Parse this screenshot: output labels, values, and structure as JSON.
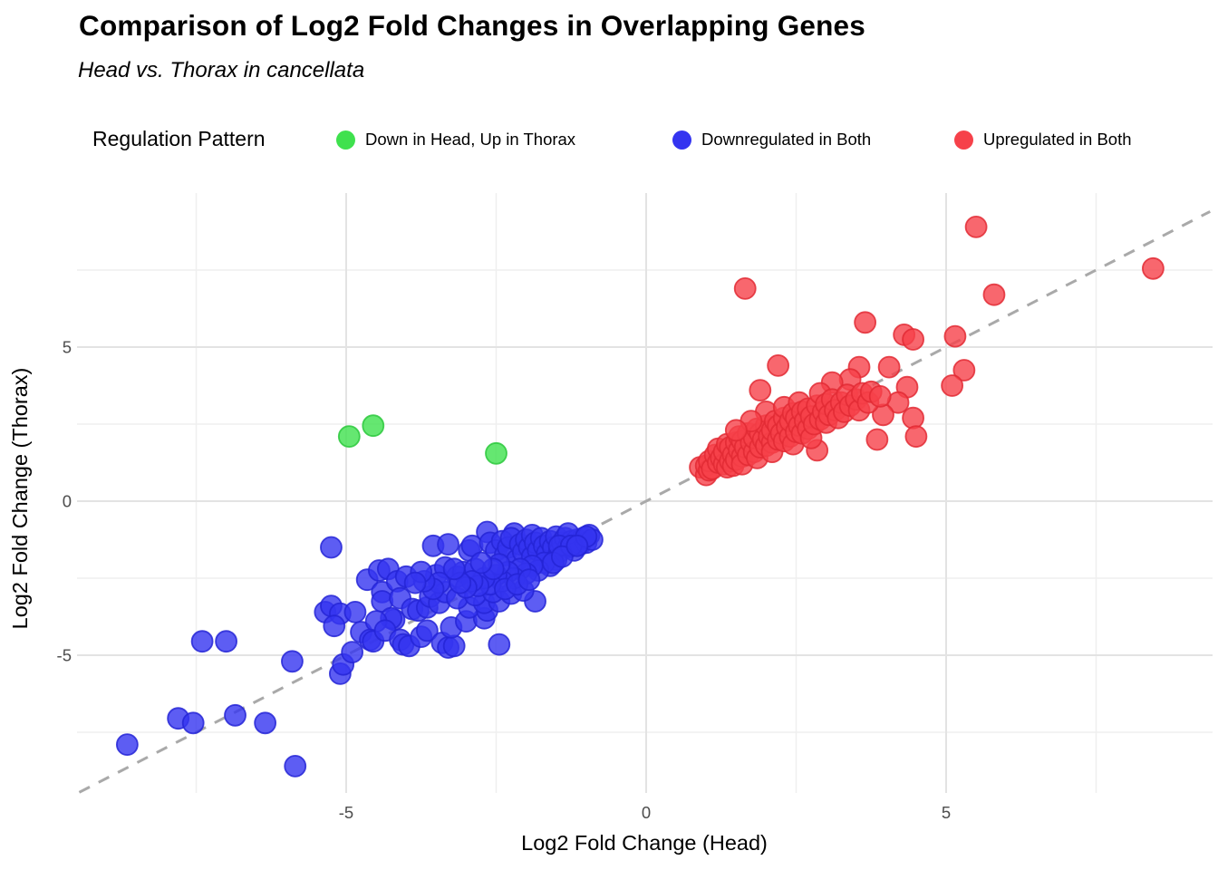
{
  "legend": {
    "title": "Regulation Pattern",
    "items": [
      {
        "label": "Down in Head, Up in Thorax",
        "color": "#3fe14e"
      },
      {
        "label": "Downregulated in Both",
        "color": "#3434f0"
      },
      {
        "label": "Upregulated in Both",
        "color": "#f6414a"
      }
    ]
  },
  "chart_data": {
    "type": "scatter",
    "title": "Comparison of Log2 Fold Changes in Overlapping Genes",
    "subtitle": "Head vs. Thorax in cancellata",
    "xlabel": "Log2 Fold Change (Head)",
    "ylabel": "Log2 Fold Change (Thorax)",
    "xlim": [
      -9.5,
      9.4
    ],
    "ylim": [
      -9.6,
      10.0
    ],
    "xticks": [
      -5,
      0,
      5
    ],
    "yticks": [
      -5,
      0,
      5
    ],
    "xticks_minor": [
      -7.5,
      -2.5,
      2.5,
      7.5
    ],
    "yticks_minor": [
      -7.5,
      -2.5,
      2.5,
      7.5
    ],
    "grid": true,
    "legend_position": "top",
    "reference_line": {
      "type": "identity",
      "equation": "y = x",
      "style": "dashed",
      "color": "#a9a9a9"
    },
    "series": [
      {
        "name": "Down in Head, Up in Thorax",
        "key": "down-head-up-thorax",
        "color": "#3fe14e",
        "stroke": "#2cc83c",
        "points": [
          [
            -4.95,
            2.1
          ],
          [
            -4.55,
            2.45
          ],
          [
            -2.5,
            1.55
          ]
        ]
      },
      {
        "name": "Downregulated in Both",
        "key": "downregulated-in-both",
        "color": "#3434f0",
        "stroke": "#2424d6",
        "points": [
          [
            -8.65,
            -7.9
          ],
          [
            -7.8,
            -7.05
          ],
          [
            -7.55,
            -7.2
          ],
          [
            -7.4,
            -4.55
          ],
          [
            -7.0,
            -4.55
          ],
          [
            -6.85,
            -6.95
          ],
          [
            -6.35,
            -7.2
          ],
          [
            -5.9,
            -5.2
          ],
          [
            -5.85,
            -8.6
          ],
          [
            -5.1,
            -5.6
          ],
          [
            -5.05,
            -5.3
          ],
          [
            -4.9,
            -4.9
          ],
          [
            -5.25,
            -1.5
          ],
          [
            -5.35,
            -3.6
          ],
          [
            -5.25,
            -3.4
          ],
          [
            -5.1,
            -3.65
          ],
          [
            -5.2,
            -4.05
          ],
          [
            -4.85,
            -3.6
          ],
          [
            -4.75,
            -4.25
          ],
          [
            -4.65,
            -2.55
          ],
          [
            -4.45,
            -2.25
          ],
          [
            -4.3,
            -2.2
          ],
          [
            -4.4,
            -2.95
          ],
          [
            -4.4,
            -3.25
          ],
          [
            -4.15,
            -2.6
          ],
          [
            -4.1,
            -3.15
          ],
          [
            -4.0,
            -2.45
          ],
          [
            -3.9,
            -3.5
          ],
          [
            -3.8,
            -3.55
          ],
          [
            -3.65,
            -3.45
          ],
          [
            -4.2,
            -3.85
          ],
          [
            -4.25,
            -3.8
          ],
          [
            -4.5,
            -3.9
          ],
          [
            -4.6,
            -4.5
          ],
          [
            -4.55,
            -4.55
          ],
          [
            -4.35,
            -4.2
          ],
          [
            -4.1,
            -4.5
          ],
          [
            -4.05,
            -4.65
          ],
          [
            -3.95,
            -4.7
          ],
          [
            -3.75,
            -4.4
          ],
          [
            -3.65,
            -4.2
          ],
          [
            -3.4,
            -4.6
          ],
          [
            -3.3,
            -4.75
          ],
          [
            -3.2,
            -4.7
          ],
          [
            -3.25,
            -4.1
          ],
          [
            -3.0,
            -3.9
          ],
          [
            -2.7,
            -3.8
          ],
          [
            -2.95,
            -3.45
          ],
          [
            -2.65,
            -3.55
          ],
          [
            -2.7,
            -3.3
          ],
          [
            -2.45,
            -3.25
          ],
          [
            -1.85,
            -3.25
          ],
          [
            -2.45,
            -4.65
          ],
          [
            -3.6,
            -3.1
          ],
          [
            -3.45,
            -3.3
          ],
          [
            -3.35,
            -2.95
          ],
          [
            -3.15,
            -3.15
          ],
          [
            -2.85,
            -3.05
          ],
          [
            -2.55,
            -2.95
          ],
          [
            -2.25,
            -3.0
          ],
          [
            -2.05,
            -2.9
          ],
          [
            -3.55,
            -1.45
          ],
          [
            -3.3,
            -1.4
          ],
          [
            -2.95,
            -1.6
          ],
          [
            -2.9,
            -1.45
          ],
          [
            -3.5,
            -2.4
          ],
          [
            -3.35,
            -2.15
          ],
          [
            -3.15,
            -2.45
          ],
          [
            -3.05,
            -2.3
          ],
          [
            -2.85,
            -2.2
          ],
          [
            -2.65,
            -1.0
          ],
          [
            -2.2,
            -1.05
          ],
          [
            -2.6,
            -1.35
          ],
          [
            -2.5,
            -1.6
          ],
          [
            -2.4,
            -1.3
          ],
          [
            -2.35,
            -1.75
          ],
          [
            -2.3,
            -1.5
          ],
          [
            -2.25,
            -1.2
          ],
          [
            -2.15,
            -1.9
          ],
          [
            -2.1,
            -1.4
          ],
          [
            -2.05,
            -1.65
          ],
          [
            -2.0,
            -1.25
          ],
          [
            -1.95,
            -1.5
          ],
          [
            -1.9,
            -1.1
          ],
          [
            -1.9,
            -1.8
          ],
          [
            -1.85,
            -1.35
          ],
          [
            -1.8,
            -1.6
          ],
          [
            -1.75,
            -1.2
          ],
          [
            -1.7,
            -1.45
          ],
          [
            -1.65,
            -1.7
          ],
          [
            -1.6,
            -1.3
          ],
          [
            -1.55,
            -1.5
          ],
          [
            -1.5,
            -1.15
          ],
          [
            -1.45,
            -1.65
          ],
          [
            -1.4,
            -1.35
          ],
          [
            -1.35,
            -1.2
          ],
          [
            -1.3,
            -1.5
          ],
          [
            -1.25,
            -1.3
          ],
          [
            -1.2,
            -1.6
          ],
          [
            -1.15,
            -1.25
          ],
          [
            -1.1,
            -1.4
          ],
          [
            -1.05,
            -1.2
          ],
          [
            -1.0,
            -1.35
          ],
          [
            -0.95,
            -1.1
          ],
          [
            -0.9,
            -1.25
          ],
          [
            -1.3,
            -1.05
          ],
          [
            -1.5,
            -1.9
          ],
          [
            -1.6,
            -2.1
          ],
          [
            -1.7,
            -2.0
          ],
          [
            -1.8,
            -2.25
          ],
          [
            -1.9,
            -2.1
          ],
          [
            -2.0,
            -2.35
          ],
          [
            -2.1,
            -2.2
          ],
          [
            -2.2,
            -2.5
          ],
          [
            -2.3,
            -2.3
          ],
          [
            -2.4,
            -2.6
          ],
          [
            -2.5,
            -2.4
          ],
          [
            -2.6,
            -2.7
          ],
          [
            -2.7,
            -2.5
          ],
          [
            -2.8,
            -2.75
          ],
          [
            -2.9,
            -2.6
          ],
          [
            -3.0,
            -2.8
          ],
          [
            -2.45,
            -2.05
          ],
          [
            -2.55,
            -2.2
          ],
          [
            -2.75,
            -2.0
          ],
          [
            -1.45,
            -1.45
          ],
          [
            -1.25,
            -1.45
          ],
          [
            -2.35,
            -2.85
          ],
          [
            -2.15,
            -2.7
          ],
          [
            -1.95,
            -2.55
          ],
          [
            -3.1,
            -2.65
          ],
          [
            -3.2,
            -2.2
          ],
          [
            -3.45,
            -2.65
          ],
          [
            -3.55,
            -2.85
          ],
          [
            -3.7,
            -2.6
          ],
          [
            -3.75,
            -2.3
          ],
          [
            -3.85,
            -2.65
          ],
          [
            -1.55,
            -2.0
          ],
          [
            -1.4,
            -1.8
          ],
          [
            -1.0,
            -1.15
          ],
          [
            -1.15,
            -1.45
          ]
        ]
      },
      {
        "name": "Upregulated in Both",
        "key": "upregulated-in-both",
        "color": "#f6414a",
        "stroke": "#e22a34",
        "points": [
          [
            5.5,
            8.9
          ],
          [
            8.45,
            7.55
          ],
          [
            1.65,
            6.9
          ],
          [
            5.8,
            6.7
          ],
          [
            3.65,
            5.8
          ],
          [
            4.3,
            5.4
          ],
          [
            4.45,
            5.25
          ],
          [
            5.15,
            5.35
          ],
          [
            2.2,
            4.4
          ],
          [
            3.55,
            4.35
          ],
          [
            4.05,
            4.35
          ],
          [
            5.3,
            4.25
          ],
          [
            5.1,
            3.75
          ],
          [
            1.9,
            3.6
          ],
          [
            4.35,
            3.7
          ],
          [
            4.2,
            3.2
          ],
          [
            3.95,
            2.8
          ],
          [
            4.45,
            2.7
          ],
          [
            3.85,
            2.0
          ],
          [
            4.5,
            2.1
          ],
          [
            2.85,
            1.65
          ],
          [
            3.4,
            3.95
          ],
          [
            3.1,
            3.85
          ],
          [
            0.9,
            1.1
          ],
          [
            1.0,
            0.85
          ],
          [
            1.0,
            1.15
          ],
          [
            1.05,
            1.0
          ],
          [
            1.05,
            1.3
          ],
          [
            1.1,
            1.05
          ],
          [
            1.15,
            1.5
          ],
          [
            1.2,
            1.25
          ],
          [
            1.2,
            1.7
          ],
          [
            1.25,
            1.4
          ],
          [
            1.3,
            1.2
          ],
          [
            1.3,
            1.6
          ],
          [
            1.35,
            1.85
          ],
          [
            1.35,
            1.1
          ],
          [
            1.4,
            1.3
          ],
          [
            1.4,
            1.75
          ],
          [
            1.45,
            1.5
          ],
          [
            1.45,
            1.15
          ],
          [
            1.5,
            1.35
          ],
          [
            1.5,
            1.9
          ],
          [
            1.55,
            1.65
          ],
          [
            1.55,
            2.1
          ],
          [
            1.6,
            1.45
          ],
          [
            1.6,
            1.2
          ],
          [
            1.6,
            1.95
          ],
          [
            1.65,
            1.75
          ],
          [
            1.7,
            1.5
          ],
          [
            1.7,
            2.2
          ],
          [
            1.75,
            1.9
          ],
          [
            1.8,
            1.6
          ],
          [
            1.8,
            2.05
          ],
          [
            1.85,
            2.35
          ],
          [
            1.85,
            1.4
          ],
          [
            1.9,
            1.75
          ],
          [
            1.9,
            2.2
          ],
          [
            1.95,
            2.0
          ],
          [
            2.0,
            1.8
          ],
          [
            2.0,
            2.45
          ],
          [
            2.0,
            2.9
          ],
          [
            2.05,
            2.1
          ],
          [
            2.1,
            1.9
          ],
          [
            2.1,
            2.3
          ],
          [
            2.1,
            1.6
          ],
          [
            2.15,
            2.6
          ],
          [
            2.2,
            2.0
          ],
          [
            2.2,
            2.45
          ],
          [
            2.25,
            2.2
          ],
          [
            2.3,
            1.95
          ],
          [
            2.3,
            2.7
          ],
          [
            2.3,
            3.05
          ],
          [
            2.35,
            2.4
          ],
          [
            2.4,
            2.1
          ],
          [
            2.4,
            2.6
          ],
          [
            2.45,
            2.85
          ],
          [
            2.45,
            1.85
          ],
          [
            2.5,
            2.25
          ],
          [
            2.5,
            2.7
          ],
          [
            2.55,
            2.45
          ],
          [
            2.55,
            3.2
          ],
          [
            2.6,
            2.2
          ],
          [
            2.6,
            2.9
          ],
          [
            2.65,
            2.6
          ],
          [
            2.7,
            2.35
          ],
          [
            2.7,
            3.0
          ],
          [
            2.75,
            2.75
          ],
          [
            2.75,
            2.05
          ],
          [
            2.8,
            2.5
          ],
          [
            2.85,
            3.1
          ],
          [
            2.9,
            2.65
          ],
          [
            2.9,
            3.5
          ],
          [
            2.95,
            2.9
          ],
          [
            3.0,
            2.55
          ],
          [
            3.0,
            3.15
          ],
          [
            3.05,
            2.8
          ],
          [
            3.1,
            3.3
          ],
          [
            3.15,
            2.95
          ],
          [
            3.2,
            2.7
          ],
          [
            3.25,
            3.2
          ],
          [
            3.3,
            2.9
          ],
          [
            3.35,
            3.45
          ],
          [
            3.4,
            3.1
          ],
          [
            3.5,
            3.3
          ],
          [
            3.55,
            2.95
          ],
          [
            3.6,
            3.5
          ],
          [
            3.7,
            3.2
          ],
          [
            3.75,
            3.55
          ],
          [
            3.9,
            3.4
          ],
          [
            1.75,
            2.6
          ],
          [
            1.5,
            2.3
          ]
        ]
      }
    ]
  }
}
